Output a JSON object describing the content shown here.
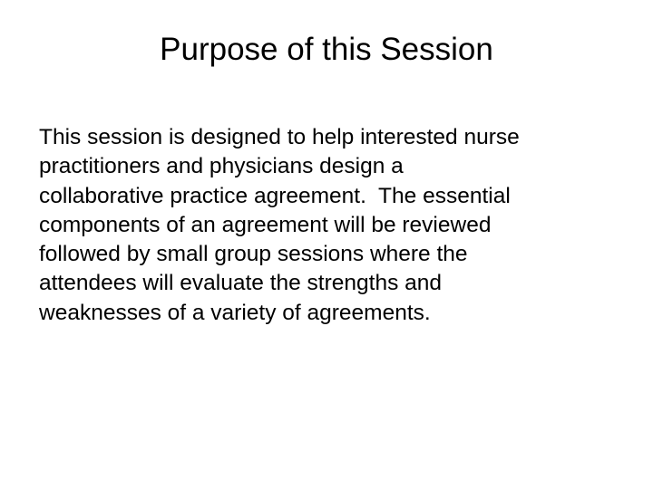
{
  "slide": {
    "title": "Purpose of this Session",
    "body_lines": [
      "This session is designed to help interested nurse",
      "practitioners and physicians design a",
      "collaborative practice agreement.  The essential",
      "components of an agreement will be reviewed",
      "followed by small group sessions where the",
      "attendees will evaluate the strengths and",
      "weaknesses of a variety of agreements."
    ]
  }
}
